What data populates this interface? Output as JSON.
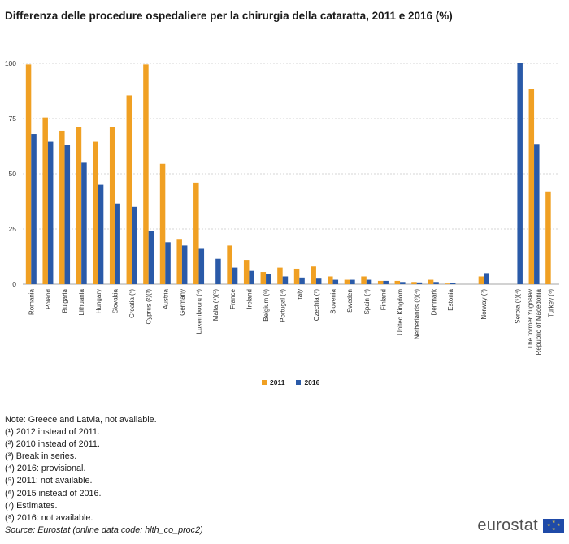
{
  "title": "Differenza delle procedure ospedaliere per la chirurgia della cataratta, 2011 e 2016 (%)",
  "chart_data": {
    "type": "bar",
    "title": "Differenza delle procedure ospedaliere per la chirurgia della cataratta, 2011 e 2016 (%)",
    "xlabel": "",
    "ylabel": "",
    "ylim": [
      0,
      100
    ],
    "yticks": [
      "0",
      "25",
      "50",
      "75",
      "100"
    ],
    "grid": true,
    "legend_position": "bottom",
    "categories": [
      "Romania",
      "Poland",
      "Bulgaria",
      "Lithuania",
      "Hungary",
      "Slovakia",
      "Croatia (¹)",
      "Cyprus (²)(³)",
      "Austria",
      "Germany",
      "Luxembourg (⁴)",
      "Malta (⁴)(⁵)",
      "France",
      "Ireland",
      "Belgium (⁶)",
      "Portugal (⁴)",
      "Italy",
      "Czechia (⁷)",
      "Slovenia",
      "Sweden",
      "Spain (⁴)",
      "Finland",
      "United Kingdom",
      "Netherlands (³)(⁴)",
      "Denmark",
      "Estonia",
      "",
      "Norway (⁷)",
      "",
      "Serbia (⁵)(⁴)",
      "The former Yugoslav\nRepublic of Macedonia",
      "Turkey (⁸)"
    ],
    "series": [
      {
        "name": "2011",
        "color": "#f0a023",
        "values": [
          99.5,
          75.5,
          69.5,
          71,
          64.5,
          71,
          85.5,
          99.5,
          54.5,
          20.5,
          46,
          null,
          17.5,
          11,
          5.5,
          7.5,
          7,
          8,
          3.5,
          2,
          3.5,
          1.5,
          1.5,
          1,
          2,
          0.3,
          null,
          3.5,
          null,
          null,
          88.5,
          42
        ]
      },
      {
        "name": "2016",
        "color": "#2a5aa8",
        "values": [
          68,
          64.5,
          63,
          55,
          45,
          36.5,
          35,
          24,
          19,
          17.5,
          16,
          11.5,
          7.5,
          6,
          4.5,
          3.5,
          3,
          2.5,
          2,
          2,
          2,
          1.5,
          1,
          0.8,
          1,
          0.6,
          null,
          5,
          null,
          100,
          63.5,
          null
        ]
      }
    ]
  },
  "notes": [
    "Note: Greece and Latvia, not available.",
    "(¹) 2012 instead of 2011.",
    "(²) 2010 instead of 2011.",
    "(³) Break in series.",
    "(⁴) 2016: provisional.",
    "(⁵) 2011: not available.",
    "(⁶) 2015 instead of 2016.",
    "(⁷) Estimates.",
    "(⁸) 2016: not available."
  ],
  "source": "Source: Eurostat (online data code: hlth_co_proc2)",
  "logo": "eurostat"
}
